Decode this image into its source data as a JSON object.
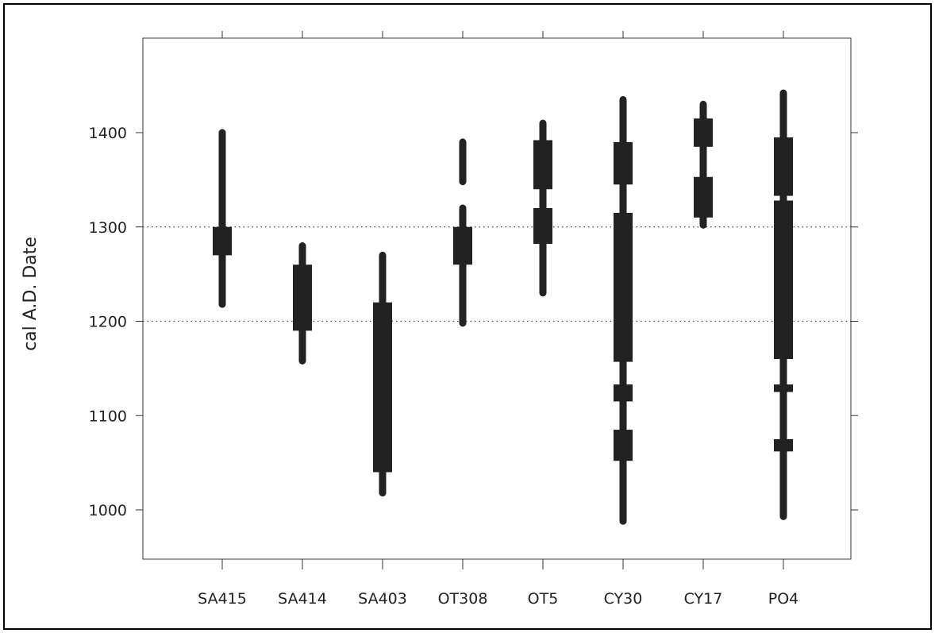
{
  "chart_data": {
    "type": "range",
    "title": "",
    "xlabel": "",
    "ylabel": "cal A.D. Date",
    "categories": [
      "SA415",
      "SA414",
      "SA403",
      "OT308",
      "OT5",
      "CY30",
      "CY17",
      "PO4"
    ],
    "yticks": [
      1000,
      1100,
      1200,
      1300,
      1400
    ],
    "ylim": [
      945,
      1490
    ],
    "reference_lines": [
      1200,
      1300
    ],
    "grid": false,
    "colors": {
      "marks": "#222222",
      "axes": "#333333",
      "border": "#000000"
    },
    "ranges_95": [
      [
        [
          1218,
          1400
        ]
      ],
      [
        [
          1158,
          1280
        ]
      ],
      [
        [
          1018,
          1270
        ]
      ],
      [
        [
          1198,
          1320
        ],
        [
          1348,
          1390
        ]
      ],
      [
        [
          1230,
          1410
        ]
      ],
      [
        [
          988,
          1435
        ]
      ],
      [
        [
          1302,
          1430
        ]
      ],
      [
        [
          993,
          1442
        ]
      ]
    ],
    "ranges_68": [
      [
        [
          1270,
          1300
        ]
      ],
      [
        [
          1190,
          1260
        ]
      ],
      [
        [
          1040,
          1220
        ]
      ],
      [
        [
          1260,
          1300
        ]
      ],
      [
        [
          1282,
          1320
        ],
        [
          1340,
          1392
        ]
      ],
      [
        [
          1052,
          1085
        ],
        [
          1115,
          1133
        ],
        [
          1157,
          1315
        ],
        [
          1345,
          1390
        ]
      ],
      [
        [
          1310,
          1353
        ],
        [
          1385,
          1415
        ]
      ],
      [
        [
          1062,
          1075
        ],
        [
          1125,
          1133
        ],
        [
          1160,
          1328
        ],
        [
          1333,
          1395
        ]
      ]
    ]
  }
}
